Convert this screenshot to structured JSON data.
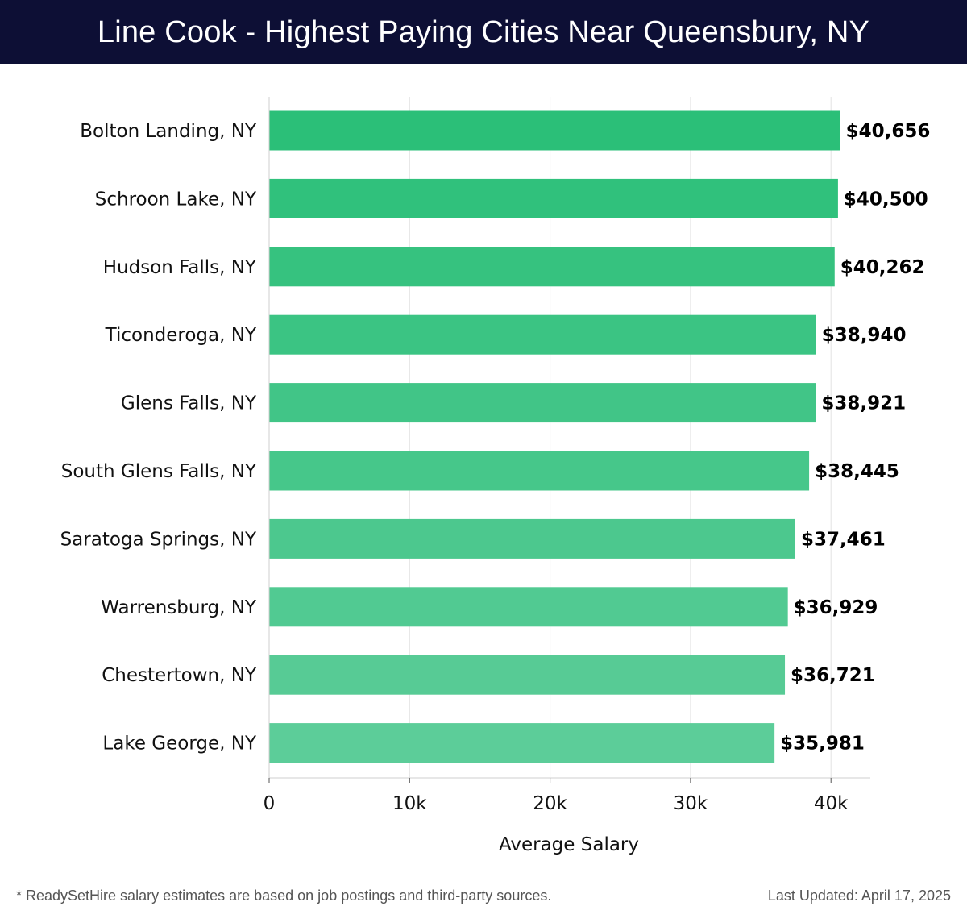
{
  "header": {
    "title": "Line Cook - Highest Paying Cities Near Queensbury, NY"
  },
  "footer": {
    "note": "* ReadySetHire salary estimates are based on job postings and third-party sources.",
    "updated": "Last Updated: April 17, 2025"
  },
  "colors": {
    "header_bg": "#0d0f35",
    "bar_top": "#2bbf78",
    "bar_bottom": "#5ccd99"
  },
  "chart_data": {
    "type": "bar",
    "orientation": "horizontal",
    "categories": [
      "Bolton Landing, NY",
      "Schroon Lake, NY",
      "Hudson Falls, NY",
      "Ticonderoga, NY",
      "Glens Falls, NY",
      "South Glens Falls, NY",
      "Saratoga Springs, NY",
      "Warrensburg, NY",
      "Chestertown, NY",
      "Lake George, NY"
    ],
    "values": [
      40656,
      40500,
      40262,
      38940,
      38921,
      38445,
      37461,
      36929,
      36721,
      35981
    ],
    "value_labels": [
      "$40,656",
      "$40,500",
      "$40,262",
      "$38,940",
      "$38,921",
      "$38,445",
      "$37,461",
      "$36,929",
      "$36,721",
      "$35,981"
    ],
    "xlabel": "Average Salary",
    "ylabel": "",
    "xlim": [
      0,
      42800
    ],
    "xticks": [
      0,
      10000,
      20000,
      30000,
      40000
    ],
    "xtick_labels": [
      "0",
      "10k",
      "20k",
      "30k",
      "40k"
    ],
    "grid": true
  }
}
